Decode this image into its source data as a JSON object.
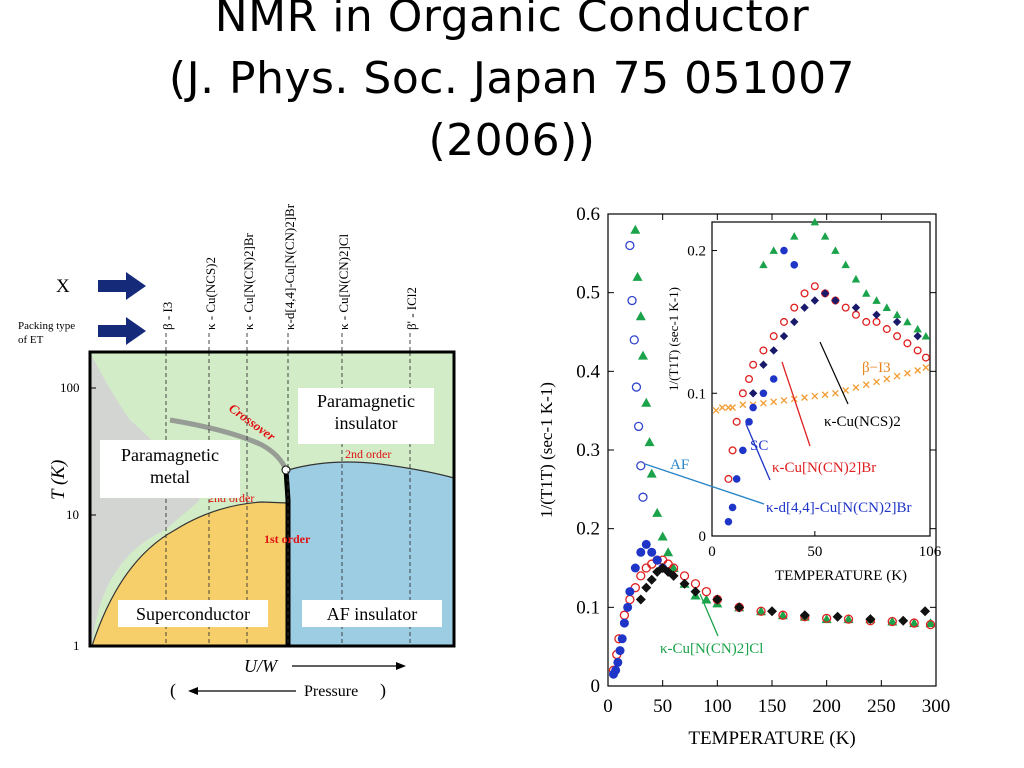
{
  "title": {
    "line1": "NMR in Organic Conductor",
    "line2": "(J. Phys. Soc. Japan 75 051007",
    "line3": "(2006))"
  },
  "phase_diagram": {
    "x_row_label": "X",
    "packing_label_1": "Packing type",
    "packing_label_2": "of ET",
    "compounds": [
      {
        "x": "I3",
        "packing": "β -"
      },
      {
        "x": "Cu(NCS)2",
        "packing": "κ -"
      },
      {
        "x": "Cu[N(CN)2]Br",
        "packing": "κ -"
      },
      {
        "x": "d[4,4]-Cu[N(CN)2]Br",
        "packing": "κ-"
      },
      {
        "x": "Cu[N(CN)2]Cl",
        "packing": "κ -"
      },
      {
        "x": "ICl2",
        "packing": "β' -"
      }
    ],
    "y_axis_label": "T  (K)",
    "y_ticks": [
      "100",
      "10",
      "1"
    ],
    "regions": {
      "para_metal": [
        "Paramagnetic",
        "metal"
      ],
      "para_insulator": [
        "Paramagnetic",
        "insulator"
      ],
      "superconductor": "Superconductor",
      "af_insulator": "AF insulator"
    },
    "annotations": {
      "crossover": "Crossover",
      "second_order_1": "2nd order",
      "second_order_2": "2nd order",
      "first_order": "1st order"
    },
    "x_axis_label": "U/W",
    "pressure_label": "Pressure",
    "paren_open": "(",
    "paren_close": ")",
    "colors": {
      "metal_bg": "#d2ecc8",
      "insulator_fill": "#9dcde2",
      "sc_fill": "#f6cf6b",
      "gray_region": "#d0d0d0",
      "annotation_red": "#e11111",
      "arrow_navy": "#162a7a"
    }
  },
  "chart_data": {
    "type": "scatter",
    "xlabel": "TEMPERATURE (K)",
    "ylabel": "1/(T1T) (sec-1 K-1)",
    "xlim": [
      0,
      300
    ],
    "ylim": [
      0,
      0.6
    ],
    "x_ticks": [
      0,
      50,
      100,
      150,
      200,
      250,
      300
    ],
    "y_ticks": [
      0,
      0.1,
      0.2,
      0.3,
      0.4,
      0.5,
      0.6
    ],
    "series": [
      {
        "name": "κ-Cu[N(CN)2]Cl",
        "marker": "triangle",
        "color": "#1aa34a",
        "x": [
          25,
          27,
          30,
          32,
          35,
          38,
          40,
          45,
          50,
          55,
          60,
          70,
          80,
          90,
          100,
          120,
          140,
          160,
          180,
          200,
          220,
          240,
          260,
          280,
          295
        ],
        "y": [
          0.58,
          0.52,
          0.47,
          0.42,
          0.36,
          0.31,
          0.27,
          0.22,
          0.19,
          0.17,
          0.15,
          0.13,
          0.115,
          0.11,
          0.105,
          0.1,
          0.095,
          0.09,
          0.088,
          0.085,
          0.085,
          0.085,
          0.082,
          0.08,
          0.08
        ]
      },
      {
        "name": "AF (open circles)",
        "marker": "open-circle",
        "color": "#3344cc",
        "x": [
          20,
          22,
          24,
          26,
          28,
          30,
          32
        ],
        "y": [
          0.56,
          0.49,
          0.44,
          0.38,
          0.33,
          0.28,
          0.24
        ]
      },
      {
        "name": "κ-Cu[N(CN)2]Br",
        "marker": "open-circle-red",
        "color": "#e02020",
        "x": [
          5,
          8,
          10,
          15,
          20,
          25,
          30,
          35,
          40,
          45,
          50,
          55,
          60,
          70,
          80,
          90,
          100,
          120,
          140,
          160,
          180,
          200,
          220,
          240,
          260,
          280,
          295
        ],
        "y": [
          0.02,
          0.04,
          0.06,
          0.09,
          0.11,
          0.125,
          0.14,
          0.15,
          0.155,
          0.16,
          0.16,
          0.155,
          0.15,
          0.14,
          0.13,
          0.12,
          0.11,
          0.1,
          0.095,
          0.09,
          0.088,
          0.086,
          0.085,
          0.083,
          0.082,
          0.08,
          0.078
        ]
      },
      {
        "name": "κ-d[4,4]-Cu[N(CN)2]Br",
        "marker": "filled-circle",
        "color": "#1f35c8",
        "x": [
          5,
          7,
          9,
          11,
          13,
          15,
          18,
          20,
          25,
          30,
          35,
          40,
          45,
          50
        ],
        "y": [
          0.015,
          0.02,
          0.03,
          0.045,
          0.06,
          0.08,
          0.1,
          0.12,
          0.15,
          0.17,
          0.18,
          0.17,
          0.16,
          0.15
        ]
      },
      {
        "name": "κ-Cu(NCS)2",
        "marker": "filled-diamond",
        "color": "#111111",
        "x": [
          30,
          35,
          40,
          45,
          50,
          55,
          60,
          70,
          80,
          100,
          120,
          150,
          180,
          210,
          240,
          270,
          290
        ],
        "y": [
          0.11,
          0.125,
          0.135,
          0.145,
          0.15,
          0.145,
          0.14,
          0.13,
          0.12,
          0.11,
          0.1,
          0.095,
          0.09,
          0.088,
          0.085,
          0.083,
          0.095
        ]
      }
    ],
    "inset": {
      "xlabel": "TEMPERATURE (K)",
      "ylabel": "1/(T1T) (sec-1 K-1)",
      "xlim": [
        0,
        106
      ],
      "ylim": [
        0,
        0.22
      ],
      "x_ticks": [
        "0",
        "50",
        "106"
      ],
      "y_ticks": [
        "0.2",
        "0.1",
        "0"
      ],
      "labels": {
        "beta": "β−I3",
        "ncs": "κ-Cu(NCS)2",
        "br": "κ-Cu[N(CN)2]Br",
        "sc": "SC",
        "d44": "κ-d[4,4]-Cu[N(CN)2]Br",
        "af": "AF",
        "cl": "κ-Cu[N(CN)2]Cl"
      },
      "series": [
        {
          "name": "β−I3",
          "marker": "x",
          "color": "#f39c32",
          "x": [
            2,
            5,
            8,
            10,
            15,
            20,
            25,
            30,
            35,
            40,
            45,
            50,
            55,
            60,
            65,
            70,
            75,
            80,
            85,
            90,
            95,
            100,
            104
          ],
          "y": [
            0.088,
            0.09,
            0.09,
            0.09,
            0.092,
            0.092,
            0.093,
            0.094,
            0.095,
            0.096,
            0.097,
            0.098,
            0.099,
            0.1,
            0.102,
            0.104,
            0.106,
            0.108,
            0.11,
            0.112,
            0.114,
            0.116,
            0.118
          ]
        },
        {
          "name": "κ-Cu[N(CN)2]Cl",
          "marker": "triangle",
          "color": "#1aa34a",
          "x": [
            25,
            30,
            40,
            50,
            55,
            60,
            65,
            70,
            75,
            80,
            85,
            90,
            95,
            100,
            104
          ],
          "y": [
            0.19,
            0.2,
            0.21,
            0.22,
            0.21,
            0.2,
            0.19,
            0.18,
            0.17,
            0.165,
            0.16,
            0.155,
            0.15,
            0.145,
            0.14
          ]
        },
        {
          "name": "κ-Cu[N(CN)2]Br",
          "marker": "open-circle-red",
          "color": "#e02020",
          "x": [
            8,
            10,
            12,
            15,
            18,
            20,
            25,
            30,
            35,
            40,
            45,
            50,
            55,
            60,
            65,
            70,
            75,
            80,
            85,
            90,
            95,
            100,
            104
          ],
          "y": [
            0.04,
            0.06,
            0.08,
            0.1,
            0.11,
            0.12,
            0.13,
            0.14,
            0.15,
            0.16,
            0.17,
            0.175,
            0.17,
            0.165,
            0.16,
            0.155,
            0.15,
            0.15,
            0.145,
            0.14,
            0.135,
            0.13,
            0.125
          ]
        },
        {
          "name": "κ-d[4,4]-Cu[N(CN)2]Br",
          "marker": "filled-circle",
          "color": "#1f35c8",
          "x": [
            8,
            10,
            12,
            15,
            18,
            20,
            25,
            30,
            35,
            40
          ],
          "y": [
            0.01,
            0.02,
            0.04,
            0.06,
            0.08,
            0.09,
            0.1,
            0.11,
            0.2,
            0.19
          ]
        },
        {
          "name": "κ-Cu(NCS)2",
          "marker": "filled-diamond",
          "color": "#1a1a6a",
          "x": [
            20,
            25,
            30,
            35,
            40,
            45,
            50,
            55,
            60,
            70,
            80,
            90,
            100
          ],
          "y": [
            0.1,
            0.12,
            0.13,
            0.14,
            0.15,
            0.16,
            0.165,
            0.17,
            0.165,
            0.16,
            0.155,
            0.15,
            0.14
          ]
        }
      ]
    }
  }
}
